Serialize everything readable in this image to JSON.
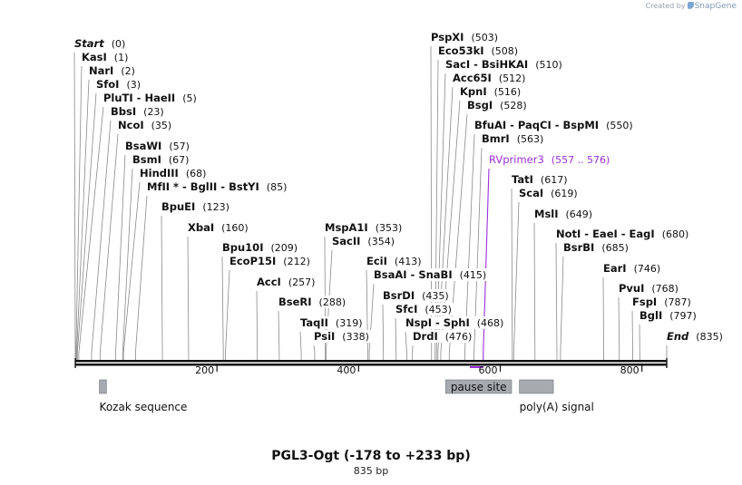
{
  "credit": {
    "prefix": "Created by",
    "brand": "SnapGene"
  },
  "map": {
    "title": "PGL3-Ogt (-178 to +233 bp)",
    "length_label": "835 bp",
    "axis_ticks": [
      200,
      400,
      600,
      800
    ],
    "sites": [
      {
        "label": "Start",
        "pos_label": "(0)",
        "pos": 0,
        "style": "endpoint"
      },
      {
        "label": "KasI",
        "pos_label": "(1)",
        "pos": 1
      },
      {
        "label": "NarI",
        "pos_label": "(2)",
        "pos": 2
      },
      {
        "label": "SfoI",
        "pos_label": "(3)",
        "pos": 3
      },
      {
        "label": "PluTI - HaeII",
        "pos_label": "(5)",
        "pos": 5
      },
      {
        "label": "BbsI",
        "pos_label": "(23)",
        "pos": 23
      },
      {
        "label": "NcoI",
        "pos_label": "(35)",
        "pos": 35
      },
      {
        "label": "BsaWI",
        "pos_label": "(57)",
        "pos": 57
      },
      {
        "label": "BsmI",
        "pos_label": "(67)",
        "pos": 67
      },
      {
        "label": "HindIII",
        "pos_label": "(68)",
        "pos": 68
      },
      {
        "label": "MfII * - BglII - BstYI",
        "pos_label": "(85)",
        "pos": 85
      },
      {
        "label": "BpuEI",
        "pos_label": "(123)",
        "pos": 123
      },
      {
        "label": "XbaI",
        "pos_label": "(160)",
        "pos": 160
      },
      {
        "label": "Bpu10I",
        "pos_label": "(209)",
        "pos": 209
      },
      {
        "label": "EcoP15I",
        "pos_label": "(212)",
        "pos": 212
      },
      {
        "label": "AccI",
        "pos_label": "(257)",
        "pos": 257
      },
      {
        "label": "BseRI",
        "pos_label": "(288)",
        "pos": 288
      },
      {
        "label": "TaqII",
        "pos_label": "(319)",
        "pos": 319
      },
      {
        "label": "PsiI",
        "pos_label": "(338)",
        "pos": 338
      },
      {
        "label": "MspA1I",
        "pos_label": "(353)",
        "pos": 353
      },
      {
        "label": "SacII",
        "pos_label": "(354)",
        "pos": 354
      },
      {
        "label": "EciI",
        "pos_label": "(413)",
        "pos": 413
      },
      {
        "label": "BsaAI - SnaBI",
        "pos_label": "(415)",
        "pos": 415
      },
      {
        "label": "BsrDI",
        "pos_label": "(435)",
        "pos": 435
      },
      {
        "label": "SfcI",
        "pos_label": "(453)",
        "pos": 453
      },
      {
        "label": "NspI - SphI",
        "pos_label": "(468)",
        "pos": 468
      },
      {
        "label": "DrdI",
        "pos_label": "(476)",
        "pos": 476
      },
      {
        "label": "PspXI",
        "pos_label": "(503)",
        "pos": 503
      },
      {
        "label": "Eco53kI",
        "pos_label": "(508)",
        "pos": 508
      },
      {
        "label": "SacI - BsiHKAI",
        "pos_label": "(510)",
        "pos": 510
      },
      {
        "label": "Acc65I",
        "pos_label": "(512)",
        "pos": 512
      },
      {
        "label": "KpnI",
        "pos_label": "(516)",
        "pos": 516
      },
      {
        "label": "BsgI",
        "pos_label": "(528)",
        "pos": 528
      },
      {
        "label": "BfuAI - PaqCI - BspMI",
        "pos_label": "(550)",
        "pos": 550
      },
      {
        "label": "BmrI",
        "pos_label": "(563)",
        "pos": 563
      },
      {
        "label": "RVprimer3",
        "pos_label": "(557 .. 576)",
        "pos": 576,
        "style": "primer",
        "start": 557,
        "end": 576
      },
      {
        "label": "TatI",
        "pos_label": "(617)",
        "pos": 617
      },
      {
        "label": "ScaI",
        "pos_label": "(619)",
        "pos": 619
      },
      {
        "label": "MslI",
        "pos_label": "(649)",
        "pos": 649
      },
      {
        "label": "NotI - EaeI - EagI",
        "pos_label": "(680)",
        "pos": 680
      },
      {
        "label": "BsrBI",
        "pos_label": "(685)",
        "pos": 685
      },
      {
        "label": "EarI",
        "pos_label": "(746)",
        "pos": 746
      },
      {
        "label": "PvuI",
        "pos_label": "(768)",
        "pos": 768
      },
      {
        "label": "FspI",
        "pos_label": "(787)",
        "pos": 787
      },
      {
        "label": "BglI",
        "pos_label": "(797)",
        "pos": 797
      },
      {
        "label": "End",
        "pos_label": "(835)",
        "pos": 835,
        "style": "endpoint"
      }
    ],
    "features": [
      {
        "label": "Kozak sequence",
        "start": 34,
        "end": 44,
        "label_inside": false
      },
      {
        "label": "pause site",
        "start": 523,
        "end": 616,
        "label_inside": true
      },
      {
        "label": "poly(A) signal",
        "start": 627,
        "end": 675,
        "label_inside": false
      }
    ],
    "colors": {
      "backbone": "#111111",
      "site_line": "#8a8a8a",
      "primer": "#9b30d9",
      "feature_fill": "#a7abb0",
      "feature_stroke": "#707478",
      "text": "#111111"
    }
  }
}
